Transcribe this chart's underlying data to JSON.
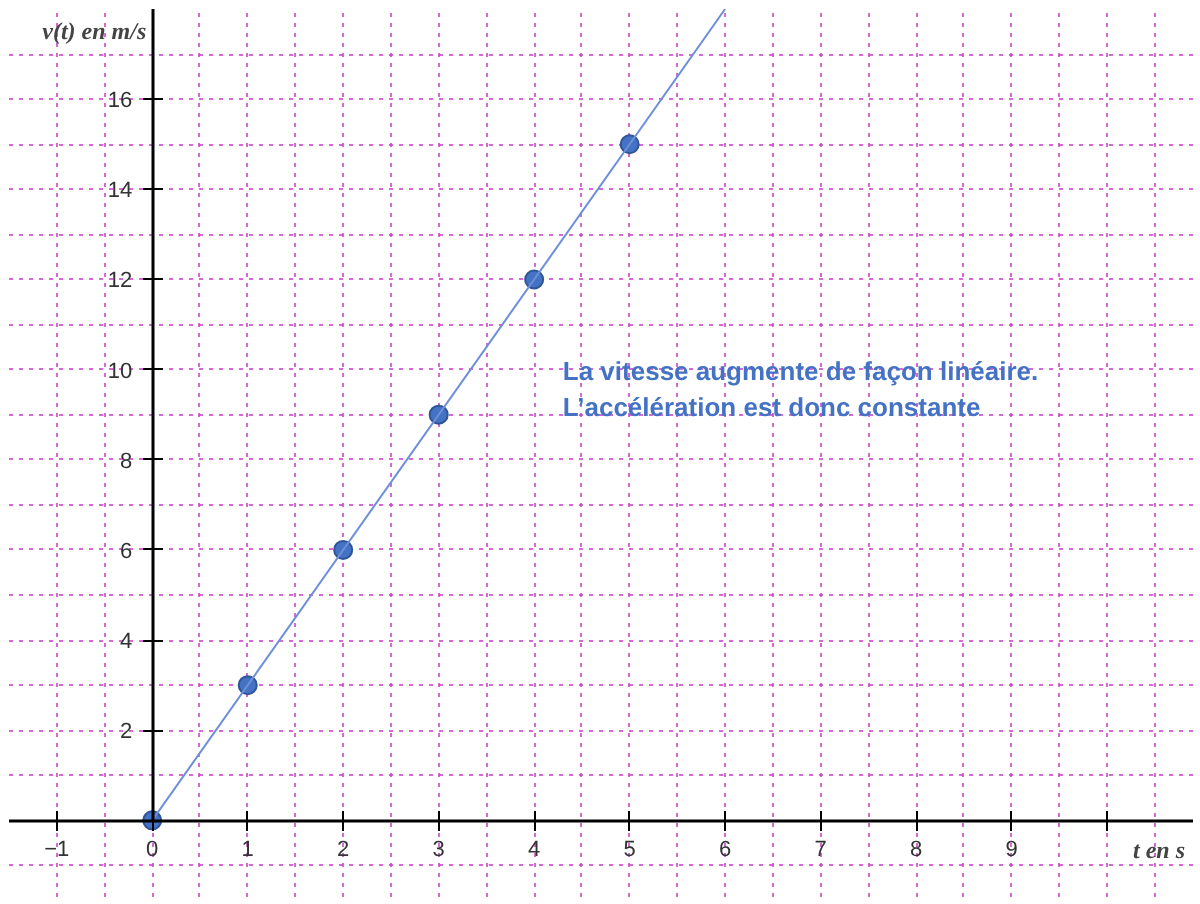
{
  "chart_data": {
    "type": "scatter",
    "xlabel": "t en s",
    "ylabel": "v(t) en m/s",
    "annotations": [
      "La vitesse augmente de façon linéaire.\nL’accélération est donc constante"
    ],
    "series": [
      {
        "marker": "circle",
        "color": "#4472c4",
        "x": [
          0,
          1,
          2,
          3,
          4,
          5
        ],
        "values": [
          0,
          3,
          6,
          9,
          12,
          15
        ]
      },
      {
        "type": "line",
        "color": "#6d8fd8",
        "x": [
          0,
          6
        ],
        "values": [
          0,
          18
        ]
      }
    ],
    "xlim": [
      -1.5,
      10.9
    ],
    "ylim": [
      -1.7,
      18
    ],
    "xticks": [
      -1,
      0,
      1,
      2,
      3,
      4,
      5,
      6,
      7,
      8,
      9,
      {
        "value": 10,
        "label": null
      }
    ],
    "yticks": [
      {
        "value": 0,
        "label": null
      },
      2,
      4,
      6,
      8,
      10,
      12,
      14,
      16
    ],
    "grid": true
  }
}
